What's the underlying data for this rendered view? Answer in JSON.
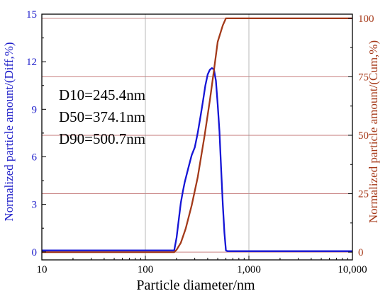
{
  "chart_data": {
    "type": "line",
    "xlabel": "Particle diameter/nm",
    "ylabel_left": "Normalized particle amount/(Diff,%)",
    "ylabel_right": "Normalized particle amount/(Cum,%)",
    "x_scale": "log",
    "xlim": [
      10,
      10000
    ],
    "ylim_left": [
      -0.5,
      15
    ],
    "ylim_right": [
      -3.3,
      101.8
    ],
    "x_ticks": [
      10,
      100,
      1000,
      10000
    ],
    "x_tick_labels": [
      "10",
      "100",
      "1,000",
      "10,000"
    ],
    "y_left_ticks": [
      0,
      3,
      6,
      9,
      12,
      15
    ],
    "y_left_tick_labels": [
      "0",
      "3",
      "6",
      "9",
      "12",
      "15"
    ],
    "y_right_ticks": [
      0,
      25,
      50,
      75,
      100
    ],
    "y_right_tick_labels": [
      "0",
      "25",
      "50",
      "75",
      "100"
    ],
    "grid": true,
    "annotations": [
      "D10=245.4nm",
      "D50=374.1nm",
      "D90=500.7nm"
    ],
    "colors": {
      "diff": "#1515d6",
      "cum": "#a33a1a",
      "left_axis": "#2020cc",
      "right_axis": "#a63a1a",
      "grid_h": "#c07070",
      "grid_v": "#9a9a9a"
    },
    "series": [
      {
        "axis": "left",
        "x": [
          10,
          190,
          200,
          210,
          220,
          230,
          240,
          260,
          280,
          300,
          320,
          340,
          360,
          380,
          400,
          420,
          440,
          460,
          480,
          500,
          520,
          540,
          560,
          580,
          600,
          620,
          10000
        ],
        "y": [
          0.1,
          0.1,
          0.9,
          2.0,
          3.1,
          3.8,
          4.4,
          5.3,
          6.1,
          6.6,
          7.5,
          8.5,
          9.5,
          10.5,
          11.2,
          11.5,
          11.6,
          11.5,
          10.8,
          9.3,
          7.6,
          5.2,
          3.0,
          1.2,
          0.1,
          0.05,
          0.05
        ]
      },
      {
        "axis": "right",
        "x": [
          10,
          190,
          200,
          220,
          245,
          280,
          320,
          374,
          420,
          460,
          500,
          560,
          600,
          620,
          10000
        ],
        "y": [
          0,
          0,
          1,
          4,
          10,
          20,
          32,
          50,
          65,
          78,
          90,
          97,
          100,
          100,
          100
        ]
      }
    ]
  }
}
